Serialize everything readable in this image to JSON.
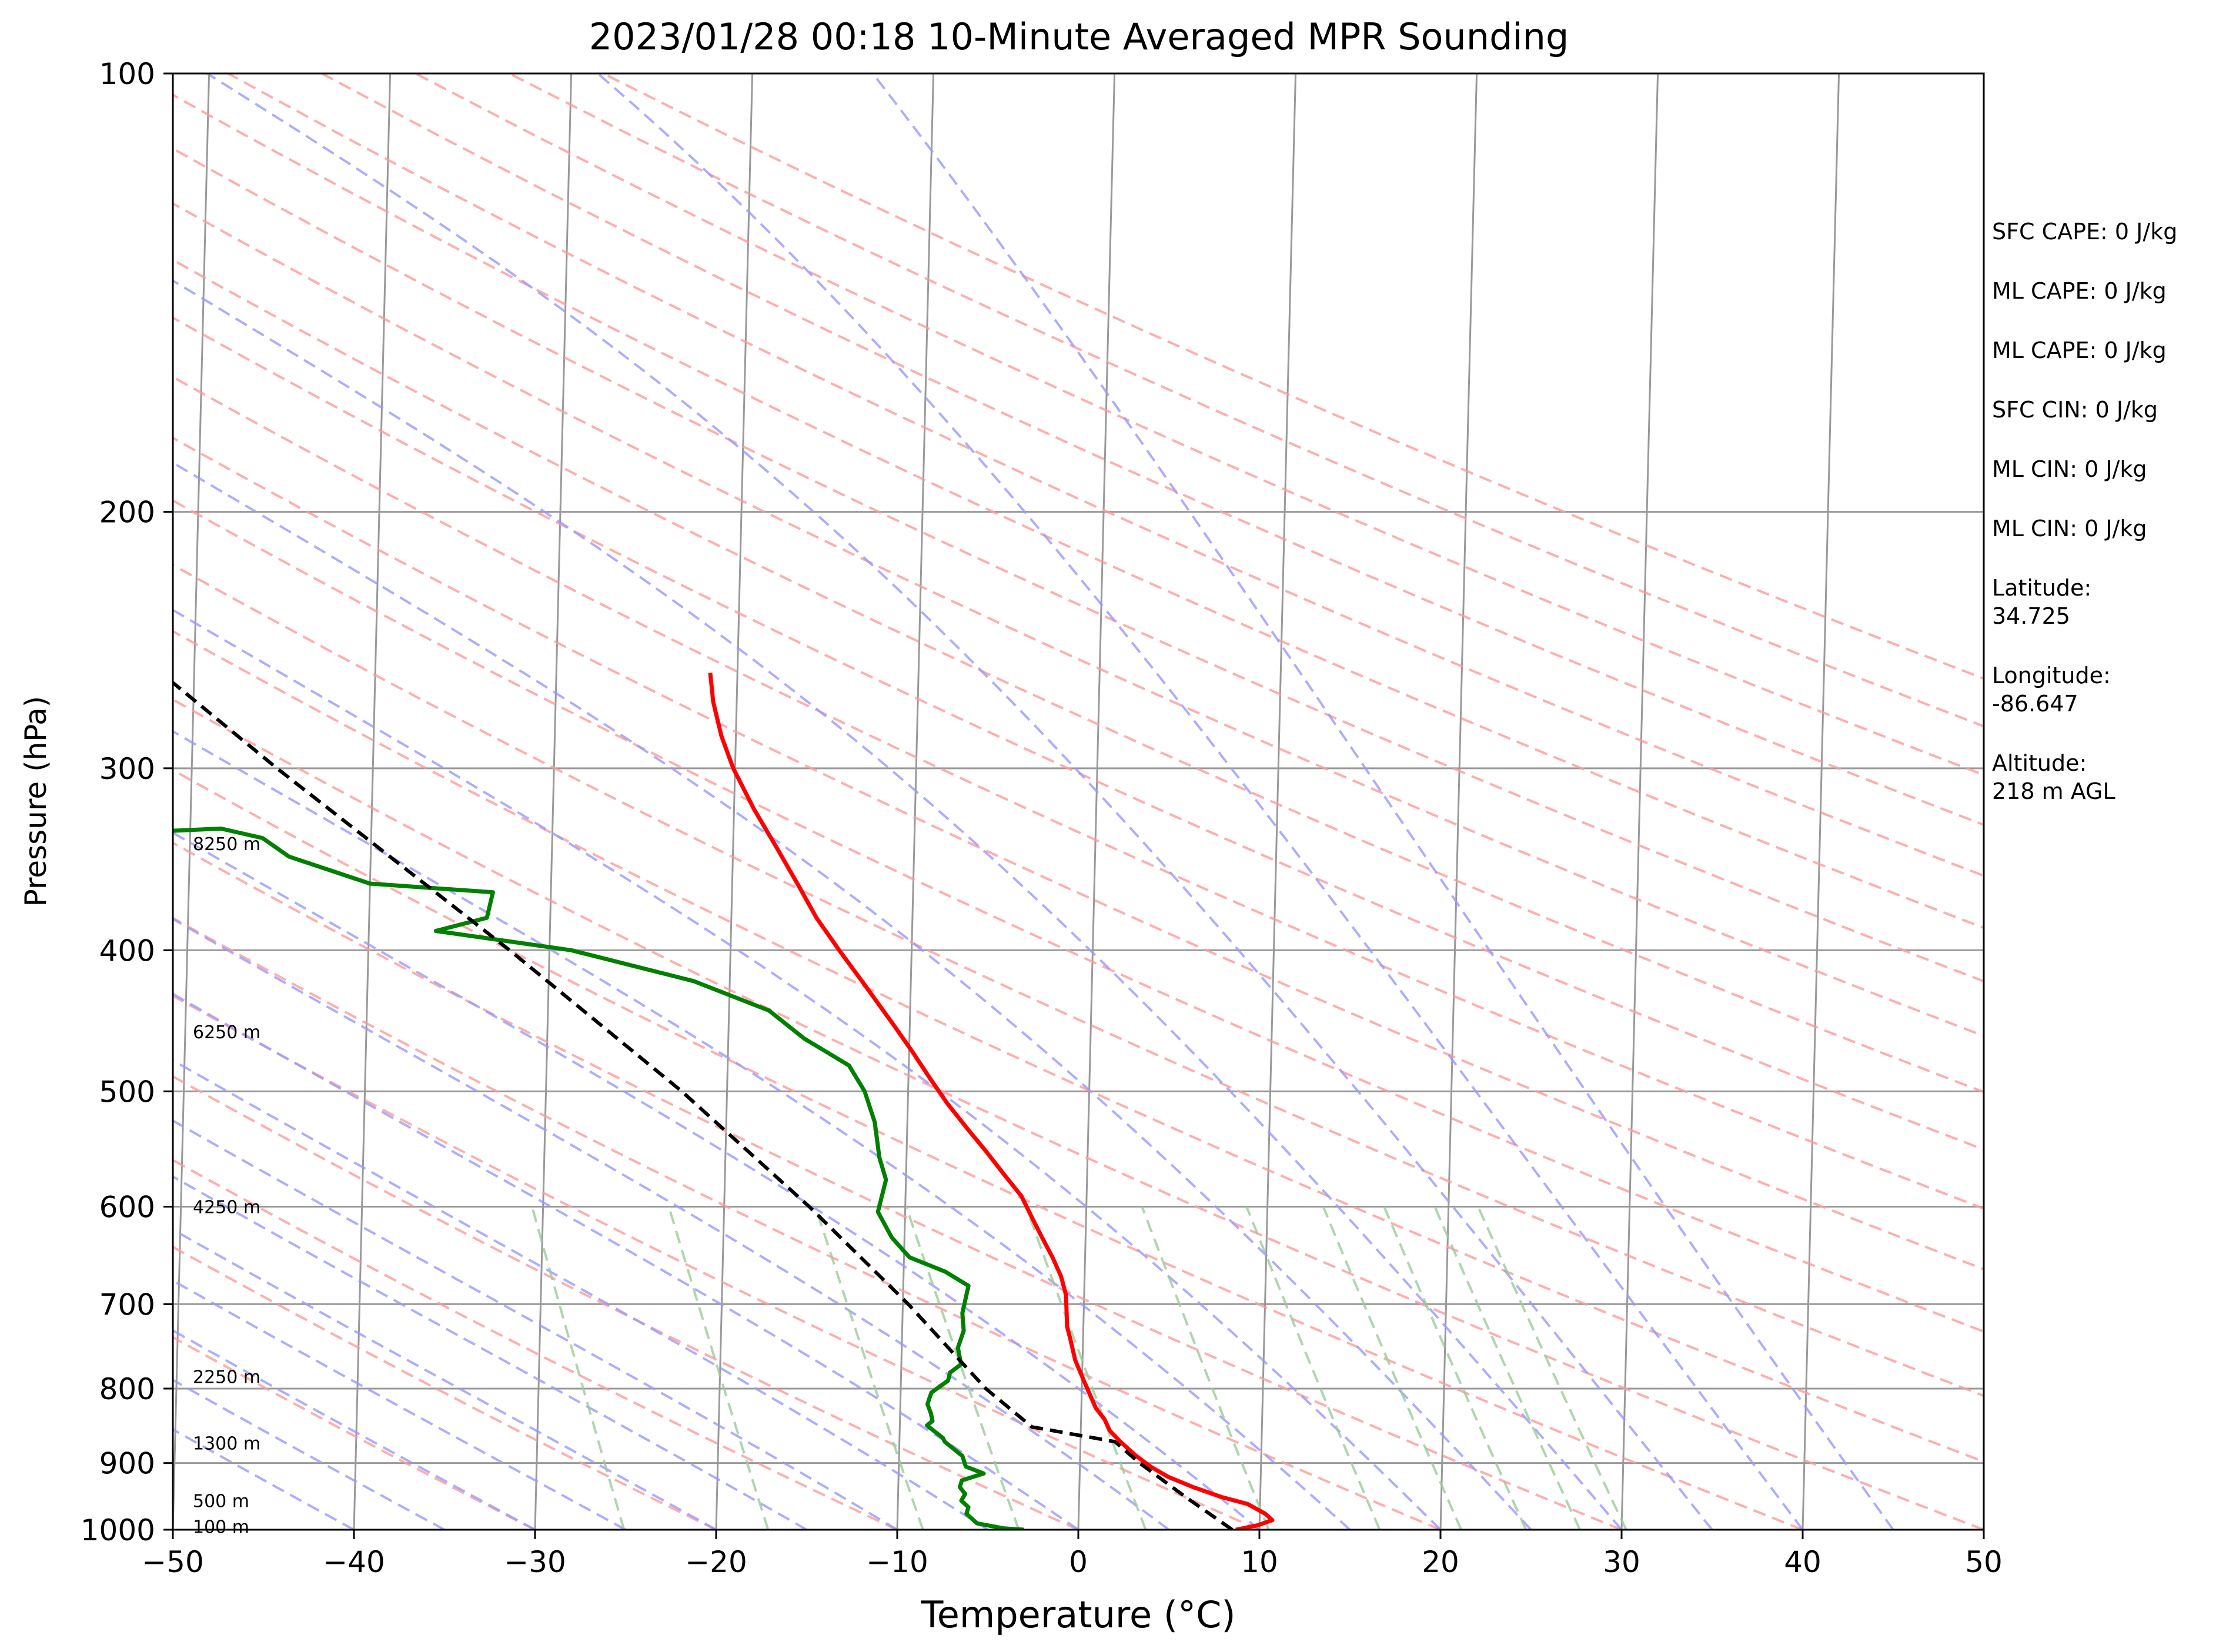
{
  "chart_data": {
    "type": "line",
    "subtype": "skew-t log-p",
    "title": "2023/01/28 00:18 10-Minute Averaged MPR Sounding",
    "xlabel": "Temperature (°C)",
    "ylabel": "Pressure (hPa)",
    "xlim": [
      -50,
      50
    ],
    "ylim": [
      1000,
      100
    ],
    "y_scale": "log",
    "grid": true,
    "x_ticks": [
      "−50",
      "−40",
      "−30",
      "−20",
      "−10",
      "0",
      "10",
      "20",
      "30",
      "40",
      "50"
    ],
    "y_ticks": [
      "1000",
      "900",
      "800",
      "700",
      "600",
      "500",
      "400",
      "300",
      "200",
      "100"
    ],
    "series": [
      {
        "role": "temperature",
        "color": "#ff0000",
        "points": [
          [
            1000,
            8.7
          ],
          [
            993,
            9.9
          ],
          [
            985,
            10.7
          ],
          [
            975,
            10.3
          ],
          [
            960,
            9.3
          ],
          [
            950,
            7.9
          ],
          [
            935,
            6.3
          ],
          [
            920,
            4.9
          ],
          [
            905,
            3.9
          ],
          [
            890,
            3.1
          ],
          [
            870,
            2.2
          ],
          [
            855,
            1.6
          ],
          [
            840,
            1.3
          ],
          [
            825,
            0.8
          ],
          [
            815,
            0.6
          ],
          [
            790,
            0.1
          ],
          [
            765,
            -0.4
          ],
          [
            740,
            -0.7
          ],
          [
            725,
            -0.9
          ],
          [
            690,
            -1.0
          ],
          [
            670,
            -1.3
          ],
          [
            650,
            -1.8
          ],
          [
            630,
            -2.4
          ],
          [
            610,
            -3.0
          ],
          [
            590,
            -3.6
          ],
          [
            570,
            -4.6
          ],
          [
            550,
            -5.6
          ],
          [
            530,
            -6.7
          ],
          [
            510,
            -7.8
          ],
          [
            490,
            -8.8
          ],
          [
            470,
            -9.8
          ],
          [
            450,
            -10.9
          ],
          [
            420,
            -12.7
          ],
          [
            400,
            -14.0
          ],
          [
            380,
            -15.3
          ],
          [
            360,
            -16.4
          ],
          [
            340,
            -17.6
          ],
          [
            320,
            -18.9
          ],
          [
            300,
            -20.1
          ],
          [
            285,
            -20.8
          ],
          [
            270,
            -21.3
          ],
          [
            258,
            -21.5
          ]
        ]
      },
      {
        "role": "dewpoint",
        "color": "#008000",
        "points": [
          [
            1000,
            -3.0
          ],
          [
            998,
            -4.1
          ],
          [
            990,
            -5.6
          ],
          [
            975,
            -6.2
          ],
          [
            965,
            -6.1
          ],
          [
            955,
            -6.5
          ],
          [
            945,
            -6.3
          ],
          [
            935,
            -6.6
          ],
          [
            925,
            -6.5
          ],
          [
            915,
            -5.3
          ],
          [
            905,
            -6.3
          ],
          [
            890,
            -6.5
          ],
          [
            870,
            -7.5
          ],
          [
            865,
            -7.6
          ],
          [
            848,
            -8.5
          ],
          [
            842,
            -8.2
          ],
          [
            832,
            -8.3
          ],
          [
            820,
            -8.5
          ],
          [
            812,
            -8.4
          ],
          [
            805,
            -8.3
          ],
          [
            790,
            -7.4
          ],
          [
            780,
            -7.3
          ],
          [
            770,
            -6.7
          ],
          [
            750,
            -6.9
          ],
          [
            730,
            -6.6
          ],
          [
            710,
            -6.7
          ],
          [
            680,
            -6.4
          ],
          [
            665,
            -7.7
          ],
          [
            650,
            -9.7
          ],
          [
            630,
            -10.7
          ],
          [
            605,
            -11.5
          ],
          [
            575,
            -11.1
          ],
          [
            555,
            -11.5
          ],
          [
            525,
            -11.8
          ],
          [
            500,
            -12.4
          ],
          [
            480,
            -13.3
          ],
          [
            460,
            -15.8
          ],
          [
            440,
            -17.8
          ],
          [
            420,
            -22.0
          ],
          [
            400,
            -28.8
          ],
          [
            388,
            -36.3
          ],
          [
            380,
            -33.5
          ],
          [
            365,
            -33.2
          ],
          [
            360,
            -40.0
          ],
          [
            345,
            -44.5
          ],
          [
            335,
            -46.0
          ],
          [
            330,
            -48.3
          ],
          [
            332,
            -53.0
          ]
        ]
      },
      {
        "role": "parcel",
        "color": "#000000",
        "points": [
          [
            1000,
            8.5
          ],
          [
            950,
            5.9
          ],
          [
            900,
            3.3
          ],
          [
            870,
            1.9
          ],
          [
            850,
            -2.7
          ],
          [
            800,
            -5.3
          ],
          [
            700,
            -9.7
          ],
          [
            600,
            -15.3
          ],
          [
            500,
            -22.5
          ],
          [
            400,
            -32.2
          ],
          [
            300,
            -45.3
          ],
          [
            257,
            -52.0
          ]
        ]
      }
    ],
    "height_labels": [
      "8250 m",
      "6250 m",
      "4250 m",
      "2250 m",
      "1300 m",
      "500 m",
      "100 m"
    ]
  },
  "side_panel": {
    "cape": [
      "SFC CAPE: 0 J/kg",
      "ML CAPE: 0 J/kg",
      "ML CAPE: 0 J/kg",
      "SFC CIN: 0 J/kg",
      "ML CIN: 0 J/kg",
      "ML CIN: 0 J/kg"
    ],
    "latitude": "Latitude:\n34.725",
    "longitude": "Longitude:\n-86.647",
    "altitude": "Altitude:\n218 m AGL"
  },
  "colors": {
    "dry_adiabat": "#ff9999",
    "moist_adiabat": "#9999ff",
    "mixing_ratio": "#99cc99",
    "isotherm": "#999999",
    "isobar": "#999999"
  }
}
